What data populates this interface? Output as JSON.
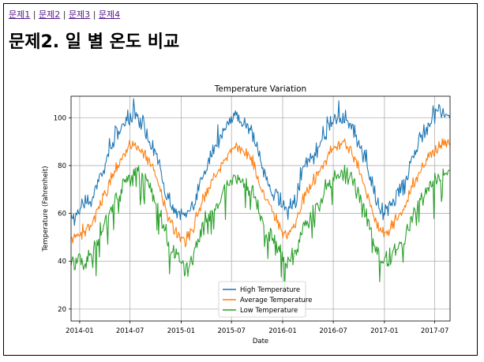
{
  "nav": {
    "links": [
      "문제1",
      "문제2",
      "문제3",
      "문제4"
    ],
    "separator": "|"
  },
  "page_title": "문제2. 일 별 온도 비교",
  "chart_data": {
    "type": "line",
    "title": "Temperature Variation",
    "xlabel": "Date",
    "ylabel": "Temperature (Fahrenheit)",
    "x_ticks": [
      "2014-01",
      "2014-07",
      "2015-01",
      "2015-07",
      "2016-01",
      "2016-07",
      "2017-01",
      "2017-07"
    ],
    "y_ticks": [
      20,
      40,
      60,
      80,
      100
    ],
    "x_range": [
      "2013-12-01",
      "2017-08-25"
    ],
    "ylim": [
      15,
      109
    ],
    "grid": true,
    "legend_position": "lower-center",
    "series": [
      {
        "name": "High Temperature",
        "color": "#1f77b4",
        "monthly_values": [
          {
            "x": "2013-12",
            "y": 58
          },
          {
            "x": "2014-01",
            "y": 64
          },
          {
            "x": "2014-02",
            "y": 66
          },
          {
            "x": "2014-03",
            "y": 75
          },
          {
            "x": "2014-04",
            "y": 84
          },
          {
            "x": "2014-05",
            "y": 93
          },
          {
            "x": "2014-06",
            "y": 98
          },
          {
            "x": "2014-07",
            "y": 100
          },
          {
            "x": "2014-08",
            "y": 96
          },
          {
            "x": "2014-09",
            "y": 88
          },
          {
            "x": "2014-10",
            "y": 80
          },
          {
            "x": "2014-11",
            "y": 65
          },
          {
            "x": "2014-12",
            "y": 60
          },
          {
            "x": "2015-01",
            "y": 58
          },
          {
            "x": "2015-02",
            "y": 62
          },
          {
            "x": "2015-03",
            "y": 75
          },
          {
            "x": "2015-04",
            "y": 84
          },
          {
            "x": "2015-05",
            "y": 90
          },
          {
            "x": "2015-06",
            "y": 97
          },
          {
            "x": "2015-07",
            "y": 101
          },
          {
            "x": "2015-08",
            "y": 98
          },
          {
            "x": "2015-09",
            "y": 93
          },
          {
            "x": "2015-10",
            "y": 80
          },
          {
            "x": "2015-11",
            "y": 70
          },
          {
            "x": "2015-12",
            "y": 66
          },
          {
            "x": "2016-01",
            "y": 60
          },
          {
            "x": "2016-02",
            "y": 64
          },
          {
            "x": "2016-03",
            "y": 78
          },
          {
            "x": "2016-04",
            "y": 82
          },
          {
            "x": "2016-05",
            "y": 88
          },
          {
            "x": "2016-06",
            "y": 97
          },
          {
            "x": "2016-07",
            "y": 100
          },
          {
            "x": "2016-08",
            "y": 99
          },
          {
            "x": "2016-09",
            "y": 94
          },
          {
            "x": "2016-10",
            "y": 84
          },
          {
            "x": "2016-11",
            "y": 72
          },
          {
            "x": "2016-12",
            "y": 60
          },
          {
            "x": "2017-01",
            "y": 62
          },
          {
            "x": "2017-02",
            "y": 68
          },
          {
            "x": "2017-03",
            "y": 72
          },
          {
            "x": "2017-04",
            "y": 84
          },
          {
            "x": "2017-05",
            "y": 90
          },
          {
            "x": "2017-06",
            "y": 98
          },
          {
            "x": "2017-07",
            "y": 102
          },
          {
            "x": "2017-08",
            "y": 101
          }
        ]
      },
      {
        "name": "Average Temperature",
        "color": "#ff7f0e",
        "monthly_values": [
          {
            "x": "2013-12",
            "y": 50
          },
          {
            "x": "2014-01",
            "y": 52
          },
          {
            "x": "2014-02",
            "y": 56
          },
          {
            "x": "2014-03",
            "y": 64
          },
          {
            "x": "2014-04",
            "y": 72
          },
          {
            "x": "2014-05",
            "y": 80
          },
          {
            "x": "2014-06",
            "y": 86
          },
          {
            "x": "2014-07",
            "y": 89
          },
          {
            "x": "2014-08",
            "y": 86
          },
          {
            "x": "2014-09",
            "y": 80
          },
          {
            "x": "2014-10",
            "y": 70
          },
          {
            "x": "2014-11",
            "y": 58
          },
          {
            "x": "2014-12",
            "y": 52
          },
          {
            "x": "2015-01",
            "y": 48
          },
          {
            "x": "2015-02",
            "y": 54
          },
          {
            "x": "2015-03",
            "y": 65
          },
          {
            "x": "2015-04",
            "y": 72
          },
          {
            "x": "2015-05",
            "y": 78
          },
          {
            "x": "2015-06",
            "y": 84
          },
          {
            "x": "2015-07",
            "y": 88
          },
          {
            "x": "2015-08",
            "y": 86
          },
          {
            "x": "2015-09",
            "y": 82
          },
          {
            "x": "2015-10",
            "y": 70
          },
          {
            "x": "2015-11",
            "y": 62
          },
          {
            "x": "2015-12",
            "y": 56
          },
          {
            "x": "2016-01",
            "y": 50
          },
          {
            "x": "2016-02",
            "y": 56
          },
          {
            "x": "2016-03",
            "y": 66
          },
          {
            "x": "2016-04",
            "y": 72
          },
          {
            "x": "2016-05",
            "y": 78
          },
          {
            "x": "2016-06",
            "y": 85
          },
          {
            "x": "2016-07",
            "y": 88
          },
          {
            "x": "2016-08",
            "y": 88
          },
          {
            "x": "2016-09",
            "y": 84
          },
          {
            "x": "2016-10",
            "y": 74
          },
          {
            "x": "2016-11",
            "y": 62
          },
          {
            "x": "2016-12",
            "y": 52
          },
          {
            "x": "2017-01",
            "y": 52
          },
          {
            "x": "2017-02",
            "y": 58
          },
          {
            "x": "2017-03",
            "y": 62
          },
          {
            "x": "2017-04",
            "y": 72
          },
          {
            "x": "2017-05",
            "y": 78
          },
          {
            "x": "2017-06",
            "y": 85
          },
          {
            "x": "2017-07",
            "y": 88
          },
          {
            "x": "2017-08",
            "y": 90
          }
        ]
      },
      {
        "name": "Low Temperature",
        "color": "#2ca02c",
        "monthly_values": [
          {
            "x": "2013-12",
            "y": 40
          },
          {
            "x": "2014-01",
            "y": 40
          },
          {
            "x": "2014-02",
            "y": 44
          },
          {
            "x": "2014-03",
            "y": 52
          },
          {
            "x": "2014-04",
            "y": 60
          },
          {
            "x": "2014-05",
            "y": 68
          },
          {
            "x": "2014-06",
            "y": 74
          },
          {
            "x": "2014-07",
            "y": 77
          },
          {
            "x": "2014-08",
            "y": 76
          },
          {
            "x": "2014-09",
            "y": 70
          },
          {
            "x": "2014-10",
            "y": 60
          },
          {
            "x": "2014-11",
            "y": 48
          },
          {
            "x": "2014-12",
            "y": 42
          },
          {
            "x": "2015-01",
            "y": 38
          },
          {
            "x": "2015-02",
            "y": 44
          },
          {
            "x": "2015-03",
            "y": 54
          },
          {
            "x": "2015-04",
            "y": 60
          },
          {
            "x": "2015-05",
            "y": 66
          },
          {
            "x": "2015-06",
            "y": 72
          },
          {
            "x": "2015-07",
            "y": 76
          },
          {
            "x": "2015-08",
            "y": 74
          },
          {
            "x": "2015-09",
            "y": 70
          },
          {
            "x": "2015-10",
            "y": 58
          },
          {
            "x": "2015-11",
            "y": 50
          },
          {
            "x": "2015-12",
            "y": 46
          },
          {
            "x": "2016-01",
            "y": 40
          },
          {
            "x": "2016-02",
            "y": 44
          },
          {
            "x": "2016-03",
            "y": 54
          },
          {
            "x": "2016-04",
            "y": 60
          },
          {
            "x": "2016-05",
            "y": 66
          },
          {
            "x": "2016-06",
            "y": 73
          },
          {
            "x": "2016-07",
            "y": 76
          },
          {
            "x": "2016-08",
            "y": 77
          },
          {
            "x": "2016-09",
            "y": 73
          },
          {
            "x": "2016-10",
            "y": 62
          },
          {
            "x": "2016-11",
            "y": 52
          },
          {
            "x": "2016-12",
            "y": 42
          },
          {
            "x": "2017-01",
            "y": 40
          },
          {
            "x": "2017-02",
            "y": 46
          },
          {
            "x": "2017-03",
            "y": 50
          },
          {
            "x": "2017-04",
            "y": 60
          },
          {
            "x": "2017-05",
            "y": 66
          },
          {
            "x": "2017-06",
            "y": 73
          },
          {
            "x": "2017-07",
            "y": 76
          },
          {
            "x": "2017-08",
            "y": 77
          }
        ]
      }
    ]
  }
}
